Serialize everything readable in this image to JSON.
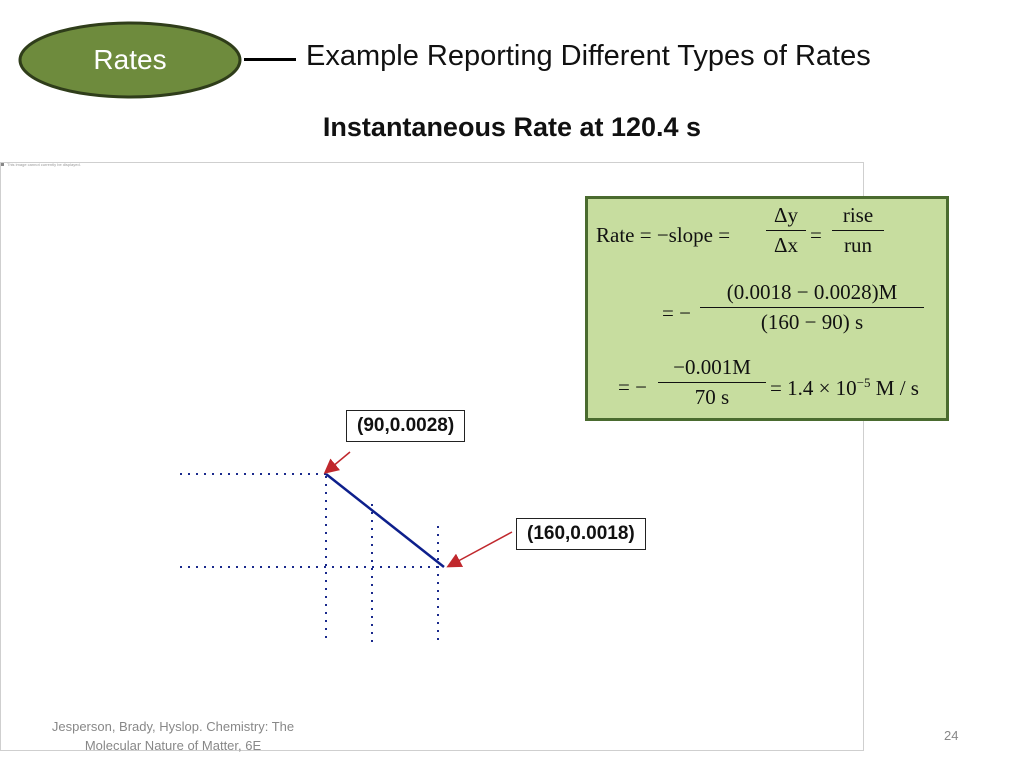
{
  "header": {
    "badge_label": "Rates",
    "title": "Example Reporting Different Types of Rates",
    "badge_color": "#6e8b3d"
  },
  "slide": {
    "subtitle": "Instantaneous Rate at 120.4 s",
    "panel_caption": "This image cannot currently be displayed."
  },
  "formula": {
    "line1_lhs": "Rate = −slope =",
    "frac1_num": "Δy",
    "frac1_den": "Δx",
    "eq": "=",
    "frac2_num": "rise",
    "frac2_den": "run",
    "line2_lhs": "= −",
    "frac3_num": "(0.0018 − 0.0028)M",
    "frac3_den": "(160 − 90) s",
    "line3_lhs": "= −",
    "frac4_num": "−0.001M",
    "frac4_den": "70 s",
    "line3_rhs": "= 1.4 × 10",
    "line3_exp": "−5",
    "line3_unit": " M / s",
    "bg_color": "#c7dd9f",
    "border_color": "#4a6b2f"
  },
  "callouts": {
    "point1": "(90,0.0028)",
    "point2": "(160,0.0018)"
  },
  "footer": {
    "citation_line1": "Jesperson, Brady, Hyslop. Chemistry: The",
    "citation_line2": "Molecular Nature of Matter, 6E",
    "page_number": "24"
  }
}
